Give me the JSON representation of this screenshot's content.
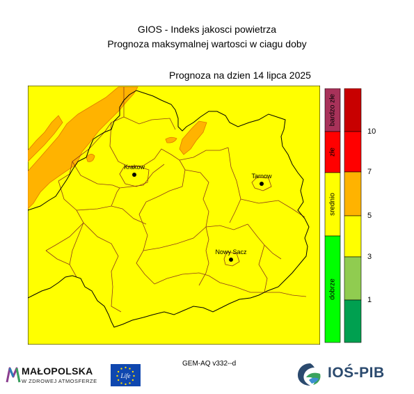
{
  "header": {
    "title_line1": "GIOS - Indeks jakosci powietrza",
    "title_line2": "Prognoza maksymalnej wartosci w ciagu doby",
    "date_label": "Prognoza na dzien  14 lipca 2025"
  },
  "map": {
    "cities": [
      {
        "name": "Krakow",
        "x": 193,
        "y": 251
      },
      {
        "name": "Tarnow",
        "x": 376,
        "y": 264
      },
      {
        "name": "Nowy Sacz",
        "x": 332,
        "y": 373
      }
    ],
    "background_color": "#ffff00",
    "elevated_color": "#ffb300"
  },
  "legend": {
    "categories": [
      {
        "label": "bardzo złe",
        "color": "#a8325a"
      },
      {
        "label": "złe",
        "color": "#ff0000"
      },
      {
        "label": "srednio",
        "color": "#ffff00"
      },
      {
        "label": "dobrze",
        "color": "#00ff00"
      }
    ],
    "scale": [
      {
        "color": "#c80000"
      },
      {
        "color": "#ff0000"
      },
      {
        "color": "#ffb300"
      },
      {
        "color": "#ffff00"
      },
      {
        "color": "#90cc50"
      },
      {
        "color": "#00a050"
      }
    ],
    "ticks": [
      "10",
      "7",
      "5",
      "3",
      "1"
    ]
  },
  "footer": {
    "model": "GEM-AQ v332--d",
    "malopolska_name": "MAŁOPOLSKA",
    "malopolska_slogan": "W ZDROWEJ ATMOSFERZE",
    "eu_life_label": "Life",
    "ios_name": "IOŚ-PIB"
  }
}
